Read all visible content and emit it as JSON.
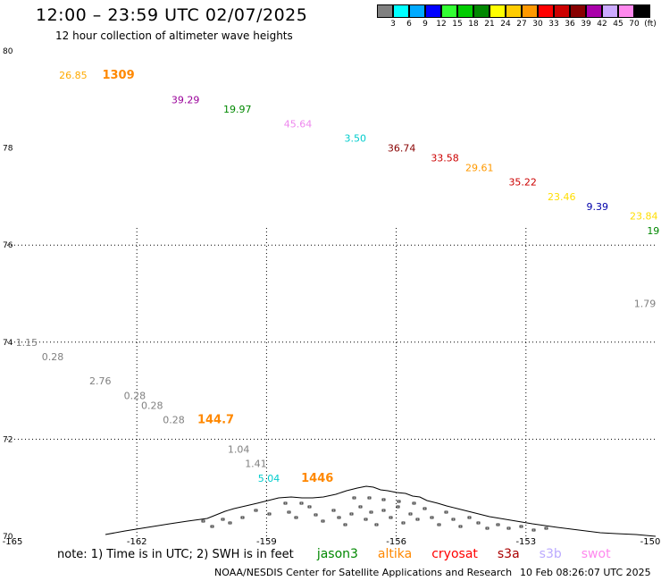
{
  "title": "12:00 – 23:59 UTC 02/07/2025",
  "subtitle": "12 hour collection of altimeter wave heights",
  "scale": {
    "unit": "(ft)",
    "colors": [
      "#808080",
      "#00ffff",
      "#00aaff",
      "#0000ff",
      "#33ff33",
      "#00cc00",
      "#008800",
      "#ffff00",
      "#ffcc00",
      "#ff9900",
      "#ff0000",
      "#cc0000",
      "#880000",
      "#aa00aa",
      "#ccaaff",
      "#ff88ee",
      "#000000"
    ],
    "labels": [
      "3",
      "6",
      "9",
      "12",
      "15",
      "18",
      "21",
      "24",
      "27",
      "30",
      "33",
      "36",
      "39",
      "42",
      "45",
      "70"
    ]
  },
  "axes": {
    "lat_labels": [
      "80",
      "78",
      "76",
      "74",
      "72",
      "70"
    ],
    "lon_labels": [
      "-165",
      "-162",
      "-159",
      "-156",
      "-153",
      "-150"
    ]
  },
  "chart_data": {
    "type": "scatter",
    "points": [
      {
        "lon": -163.8,
        "lat": 79.5,
        "value": "26.85",
        "color": "#ffaa00"
      },
      {
        "lon": -162.8,
        "lat": 79.5,
        "value": "1309",
        "color": "#ff8800",
        "big": true
      },
      {
        "lon": -161.2,
        "lat": 79.0,
        "value": "39.29",
        "color": "#990099"
      },
      {
        "lon": -160.0,
        "lat": 78.8,
        "value": "19.97",
        "color": "#008800"
      },
      {
        "lon": -158.6,
        "lat": 78.5,
        "value": "45.64",
        "color": "#ee88ee"
      },
      {
        "lon": -157.2,
        "lat": 78.2,
        "value": "3.50",
        "color": "#00cccc"
      },
      {
        "lon": -156.2,
        "lat": 78.0,
        "value": "36.74",
        "color": "#880000"
      },
      {
        "lon": -155.2,
        "lat": 77.8,
        "value": "33.58",
        "color": "#cc0000"
      },
      {
        "lon": -154.4,
        "lat": 77.6,
        "value": "29.61",
        "color": "#ff9900"
      },
      {
        "lon": -153.4,
        "lat": 77.3,
        "value": "35.22",
        "color": "#cc0000"
      },
      {
        "lon": -152.5,
        "lat": 77.0,
        "value": "23.46",
        "color": "#ffdd00"
      },
      {
        "lon": -151.6,
        "lat": 76.8,
        "value": "9.39",
        "color": "#0000aa"
      },
      {
        "lon": -150.6,
        "lat": 76.6,
        "value": "23.84",
        "color": "#ffdd00"
      },
      {
        "lon": -150.2,
        "lat": 76.3,
        "value": "19",
        "color": "#008800"
      },
      {
        "lon": -150.5,
        "lat": 74.8,
        "value": "1.79",
        "color": "#808080"
      },
      {
        "lon": -164.8,
        "lat": 74.0,
        "value": "1.15",
        "color": "#808080"
      },
      {
        "lon": -164.2,
        "lat": 73.7,
        "value": "0.28",
        "color": "#808080"
      },
      {
        "lon": -163.1,
        "lat": 73.2,
        "value": "2.76",
        "color": "#808080"
      },
      {
        "lon": -162.3,
        "lat": 72.9,
        "value": "0.28",
        "color": "#808080"
      },
      {
        "lon": -161.9,
        "lat": 72.7,
        "value": "0.28",
        "color": "#808080"
      },
      {
        "lon": -161.4,
        "lat": 72.4,
        "value": "0.28",
        "color": "#808080"
      },
      {
        "lon": -160.6,
        "lat": 72.4,
        "value": "144.7",
        "color": "#ff8800",
        "big": true
      },
      {
        "lon": -159.9,
        "lat": 71.8,
        "value": "1.04",
        "color": "#808080"
      },
      {
        "lon": -159.5,
        "lat": 71.5,
        "value": "1.41",
        "color": "#808080"
      },
      {
        "lon": -159.2,
        "lat": 71.2,
        "value": "5.04",
        "color": "#00cccc"
      },
      {
        "lon": -158.2,
        "lat": 71.2,
        "value": "1446",
        "color": "#ff8800",
        "big": true
      }
    ]
  },
  "note": {
    "text": "note: 1) Time is in UTC; 2) SWH is in feet",
    "satellites": [
      {
        "name": "jason3",
        "color": "#008800"
      },
      {
        "name": "altika",
        "color": "#ff8800"
      },
      {
        "name": "cryosat",
        "color": "#ff0000"
      },
      {
        "name": "s3a",
        "color": "#aa0000"
      },
      {
        "name": "s3b",
        "color": "#bbaaff"
      },
      {
        "name": "swot",
        "color": "#ff88ee"
      }
    ]
  },
  "footer": "NOAA/NESDIS Center for Satellite Applications and Research",
  "timestamp": "10 Feb 08:26:07 UTC 2025"
}
